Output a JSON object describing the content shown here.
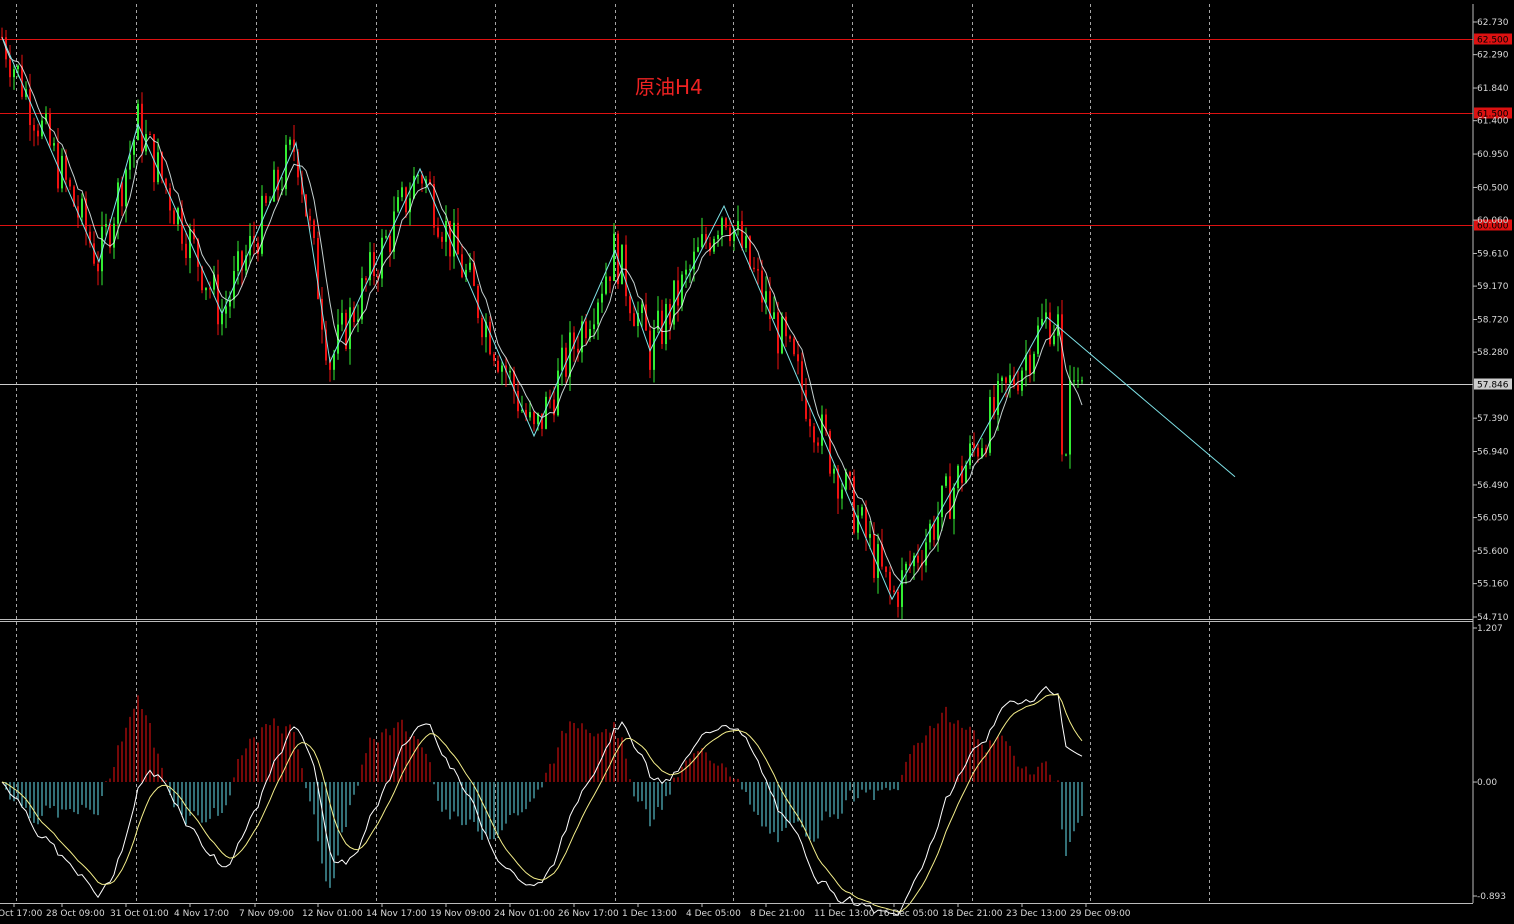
{
  "chart_data": {
    "type": "candlestick",
    "title": "原油H4",
    "colors": {
      "background": "#000000",
      "up": "#33ee33",
      "down": "#ee1111",
      "zigzag": "#7fe3e8",
      "ma": "#e8f4f4",
      "grid": "#dddddd",
      "level": "#dd1111",
      "hist_pos": "#ee1111",
      "hist_neg": "#66e0ee",
      "signal": "#f4ee8a"
    },
    "price_axis": {
      "ticks": [
        "62.730",
        "62.290",
        "61.840",
        "61.400",
        "60.950",
        "60.500",
        "60.060",
        "59.610",
        "59.170",
        "58.720",
        "58.280",
        "57.846",
        "57.390",
        "56.940",
        "56.490",
        "56.050",
        "55.600",
        "55.160",
        "54.710"
      ],
      "range": [
        54.71,
        62.73
      ]
    },
    "horizontal_levels": [
      {
        "price": 62.5,
        "label": "62.500",
        "color": "#dd1111"
      },
      {
        "price": 61.5,
        "label": "61.500",
        "color": "#dd1111"
      },
      {
        "price": 60.0,
        "label": "60.000",
        "color": "#dd1111"
      },
      {
        "price": 57.846,
        "label": "57.846",
        "color": "#cccccc"
      }
    ],
    "date_labels": [
      "Oct 17:00",
      "28 Oct 09:00",
      "31 Oct 01:00",
      "4 Nov 17:00",
      "7 Nov 09:00",
      "12 Nov 01:00",
      "14 Nov 17:00",
      "19 Nov 09:00",
      "24 Nov 01:00",
      "26 Nov 17:00",
      "1 Dec 13:00",
      "4 Dec 05:00",
      "8 Dec 21:00",
      "11 Dec 13:00",
      "16 Dec 05:00",
      "18 Dec 21:00",
      "23 Dec 13:00",
      "29 Dec 09:00"
    ],
    "zigzag_prices": [
      62.5,
      59.5,
      61.35,
      58.8,
      61.1,
      58.15,
      60.75,
      57.15,
      59.65,
      58.3,
      60.25,
      54.95,
      58.75,
      56.6
    ],
    "oscillator": {
      "axis_labels": [
        "1.207",
        "0.00",
        "-0.893"
      ],
      "range": [
        -0.893,
        1.207
      ]
    }
  }
}
